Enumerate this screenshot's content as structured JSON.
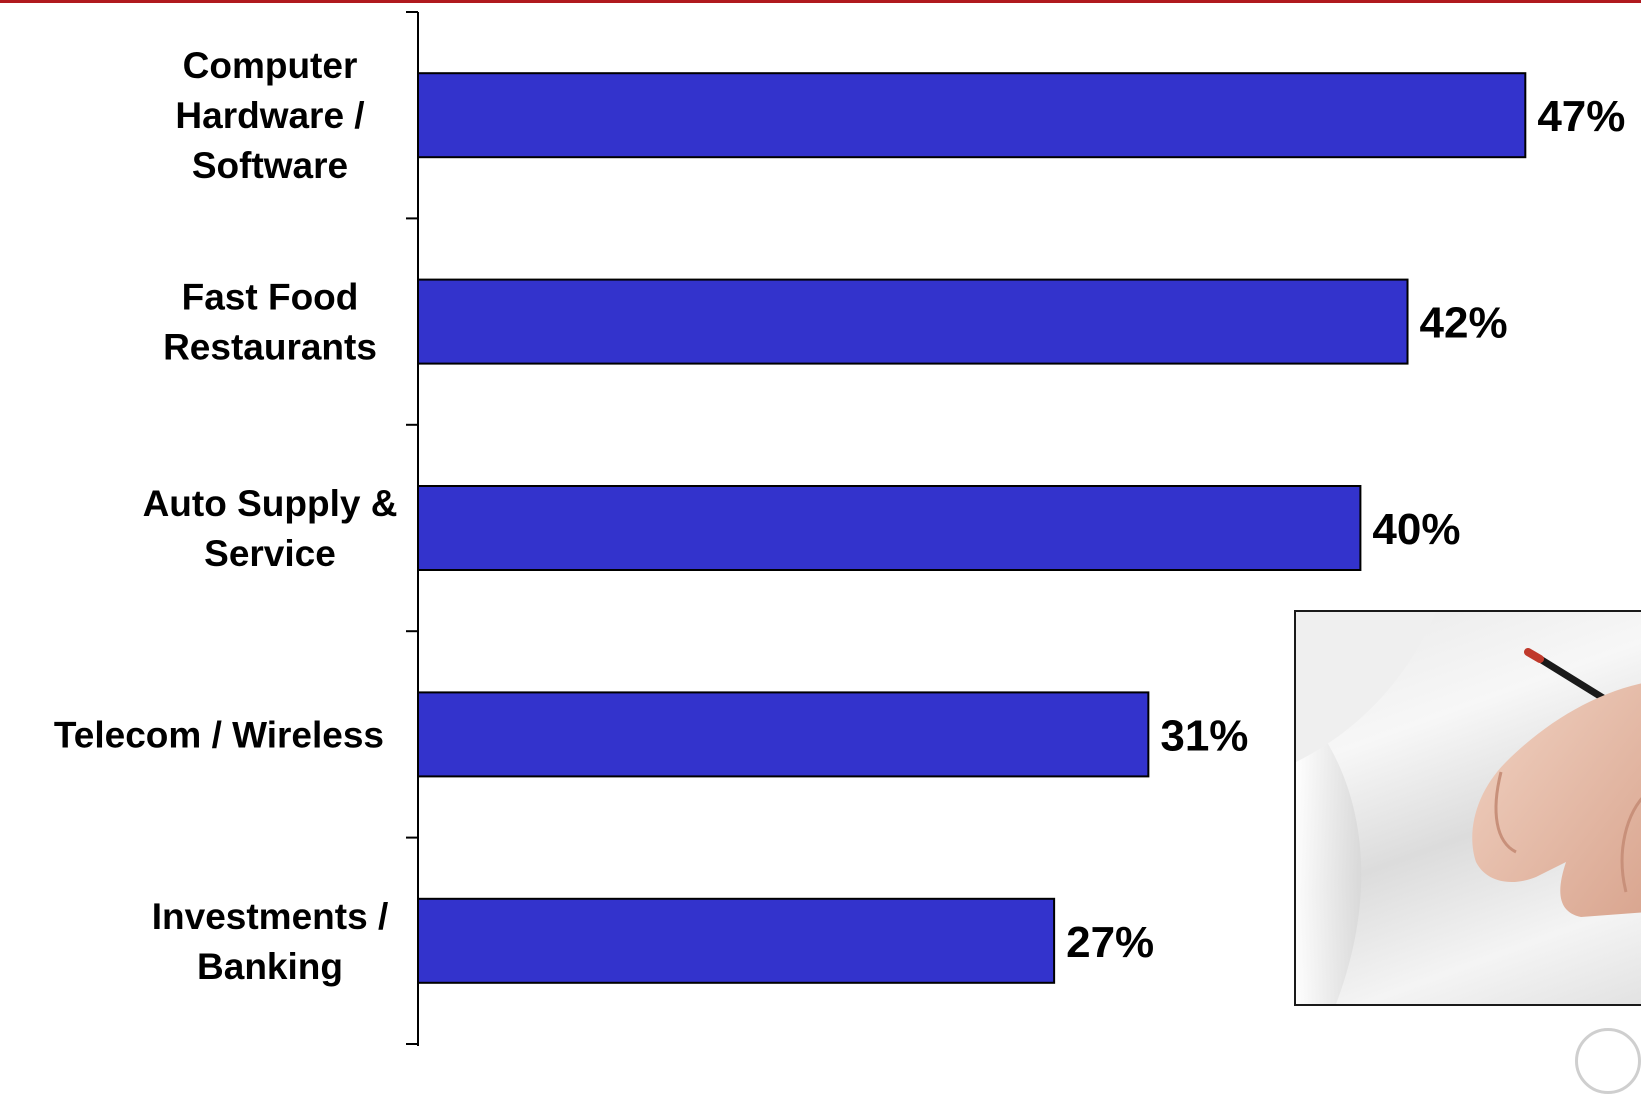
{
  "colors": {
    "accent_bar": "#3333cc",
    "top_rule": "#b0191e",
    "axis": "#000000"
  },
  "chart_data": {
    "type": "bar",
    "orientation": "horizontal",
    "categories": [
      [
        "Computer",
        "Hardware /",
        "Software"
      ],
      [
        "Fast Food",
        "Restaurants"
      ],
      [
        "Auto Supply &",
        "Service"
      ],
      [
        "Telecom / Wireless"
      ],
      [
        "Investments /",
        "Banking"
      ]
    ],
    "values": [
      47,
      42,
      40,
      31,
      27
    ],
    "value_labels": [
      "47%",
      "42%",
      "40%",
      "31%",
      "27%"
    ],
    "xlim": [
      0,
      50
    ],
    "grid": false,
    "legend": "none"
  },
  "photo": {
    "icon": "hand-holding-pen-photo"
  }
}
